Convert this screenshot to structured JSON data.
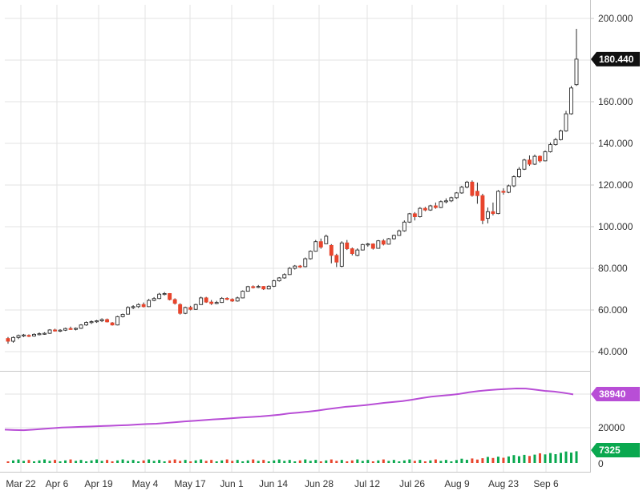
{
  "chart_data": {
    "type": "candlestick",
    "main": {
      "y_ticks": [
        "200.000",
        "180.000",
        "160.000",
        "140.000",
        "120.000",
        "100.000",
        "80.000",
        "60.000",
        "40.000"
      ],
      "ylim": [
        35,
        205
      ],
      "last_price": "180.440",
      "candles": [
        [
          46.3,
          47.0,
          43.8,
          45.0
        ],
        [
          45.0,
          47.3,
          44.3,
          46.8
        ],
        [
          46.8,
          48.2,
          46.0,
          47.7
        ],
        [
          47.7,
          48.5,
          47.0,
          48.0
        ],
        [
          47.8,
          48.3,
          47.0,
          47.5
        ],
        [
          47.5,
          48.8,
          47.2,
          48.3
        ],
        [
          48.3,
          49.2,
          47.8,
          48.6
        ],
        [
          48.6,
          49.3,
          48.1,
          48.8
        ],
        [
          48.8,
          50.8,
          48.5,
          50.4
        ],
        [
          50.4,
          51.0,
          49.6,
          49.9
        ],
        [
          49.9,
          50.8,
          49.4,
          50.3
        ],
        [
          50.3,
          51.5,
          49.9,
          51.1
        ],
        [
          51.1,
          52.0,
          50.5,
          50.7
        ],
        [
          50.7,
          51.6,
          50.2,
          51.2
        ],
        [
          51.2,
          53.2,
          50.9,
          52.8
        ],
        [
          52.8,
          54.5,
          52.4,
          54.0
        ],
        [
          54.0,
          55.0,
          53.3,
          54.4
        ],
        [
          54.4,
          55.2,
          53.8,
          54.8
        ],
        [
          54.8,
          56.0,
          54.2,
          55.4
        ],
        [
          55.4,
          55.9,
          54.0,
          54.3
        ],
        [
          53.8,
          54.2,
          52.5,
          52.8
        ],
        [
          52.8,
          57.2,
          52.6,
          56.8
        ],
        [
          56.8,
          58.3,
          56.4,
          57.9
        ],
        [
          58.0,
          61.8,
          57.8,
          61.2
        ],
        [
          61.2,
          62.3,
          60.4,
          61.6
        ],
        [
          61.6,
          63.2,
          61.0,
          62.6
        ],
        [
          62.6,
          63.6,
          61.2,
          61.6
        ],
        [
          61.6,
          65.3,
          61.4,
          64.6
        ],
        [
          64.6,
          66.2,
          64.2,
          65.5
        ],
        [
          65.5,
          68.2,
          65.2,
          67.6
        ],
        [
          67.6,
          68.6,
          67.0,
          67.9
        ],
        [
          67.9,
          68.1,
          64.6,
          65.0
        ],
        [
          65.0,
          65.6,
          62.6,
          63.2
        ],
        [
          62.6,
          63.2,
          57.8,
          58.4
        ],
        [
          58.4,
          61.6,
          58.0,
          61.2
        ],
        [
          61.2,
          62.0,
          59.8,
          60.3
        ],
        [
          60.3,
          63.0,
          60.0,
          62.6
        ],
        [
          62.6,
          66.4,
          62.4,
          65.8
        ],
        [
          65.8,
          66.3,
          63.4,
          63.8
        ],
        [
          63.8,
          64.8,
          62.4,
          63.1
        ],
        [
          63.1,
          64.4,
          62.8,
          63.6
        ],
        [
          63.6,
          66.2,
          63.4,
          65.6
        ],
        [
          65.6,
          66.1,
          64.7,
          65.1
        ],
        [
          65.1,
          65.6,
          63.9,
          64.3
        ],
        [
          64.3,
          66.4,
          64.0,
          65.8
        ],
        [
          65.8,
          69.4,
          65.6,
          69.0
        ],
        [
          69.0,
          71.6,
          68.8,
          71.2
        ],
        [
          71.2,
          71.8,
          70.3,
          70.9
        ],
        [
          70.9,
          72.0,
          70.5,
          71.3
        ],
        [
          71.3,
          71.5,
          69.6,
          70.1
        ],
        [
          70.1,
          71.8,
          69.9,
          71.4
        ],
        [
          71.4,
          74.5,
          71.0,
          74.0
        ],
        [
          74.0,
          75.8,
          73.6,
          75.4
        ],
        [
          75.4,
          77.6,
          75.0,
          77.0
        ],
        [
          77.0,
          80.6,
          76.8,
          80.0
        ],
        [
          80.0,
          81.6,
          79.4,
          81.1
        ],
        [
          81.1,
          81.6,
          80.2,
          80.8
        ],
        [
          80.8,
          85.2,
          80.5,
          84.6
        ],
        [
          84.6,
          88.6,
          84.2,
          88.2
        ],
        [
          88.2,
          93.6,
          88.0,
          92.8
        ],
        [
          92.8,
          94.3,
          89.4,
          90.2
        ],
        [
          91.8,
          96.2,
          91.6,
          95.4
        ],
        [
          91.0,
          91.6,
          82.4,
          86.2
        ],
        [
          86.2,
          87.0,
          80.6,
          83.0
        ],
        [
          81.0,
          93.0,
          80.5,
          92.2
        ],
        [
          92.2,
          93.6,
          88.8,
          89.4
        ],
        [
          89.4,
          90.0,
          86.2,
          87.1
        ],
        [
          86.2,
          89.6,
          85.8,
          88.8
        ],
        [
          88.8,
          91.8,
          88.6,
          91.4
        ],
        [
          91.4,
          92.2,
          90.4,
          91.7
        ],
        [
          91.7,
          92.0,
          89.0,
          89.6
        ],
        [
          89.6,
          93.6,
          89.4,
          93.2
        ],
        [
          93.2,
          94.0,
          91.0,
          91.6
        ],
        [
          91.6,
          94.6,
          91.4,
          94.2
        ],
        [
          94.2,
          96.2,
          93.8,
          95.8
        ],
        [
          95.8,
          98.6,
          95.6,
          98.0
        ],
        [
          98.0,
          103.0,
          97.6,
          102.2
        ],
        [
          102.2,
          106.6,
          101.8,
          106.2
        ],
        [
          106.2,
          107.0,
          103.0,
          104.8
        ],
        [
          104.8,
          109.4,
          104.4,
          108.8
        ],
        [
          108.8,
          109.5,
          107.4,
          108.0
        ],
        [
          108.0,
          110.5,
          107.6,
          110.0
        ],
        [
          110.0,
          111.6,
          108.6,
          109.2
        ],
        [
          109.2,
          112.6,
          108.9,
          112.0
        ],
        [
          112.0,
          113.6,
          111.2,
          112.4
        ],
        [
          112.4,
          114.4,
          111.8,
          113.9
        ],
        [
          113.9,
          116.6,
          113.4,
          116.2
        ],
        [
          116.2,
          119.6,
          115.8,
          119.0
        ],
        [
          119.0,
          122.0,
          118.4,
          121.4
        ],
        [
          121.4,
          122.2,
          114.4,
          115.0
        ],
        [
          117.0,
          121.2,
          111.0,
          114.9
        ],
        [
          114.9,
          115.8,
          101.2,
          103.0
        ],
        [
          104.0,
          109.2,
          101.6,
          107.2
        ],
        [
          107.2,
          111.6,
          105.4,
          106.3
        ],
        [
          106.3,
          117.6,
          106.0,
          117.0
        ],
        [
          117.0,
          118.4,
          115.4,
          116.5
        ],
        [
          116.5,
          120.2,
          116.1,
          119.6
        ],
        [
          119.6,
          124.6,
          119.0,
          124.0
        ],
        [
          124.0,
          128.6,
          123.5,
          127.6
        ],
        [
          127.6,
          132.6,
          127.2,
          132.0
        ],
        [
          132.0,
          134.2,
          129.2,
          130.0
        ],
        [
          130.0,
          134.6,
          129.6,
          133.8
        ],
        [
          133.8,
          134.2,
          130.8,
          131.6
        ],
        [
          131.6,
          136.6,
          131.4,
          136.0
        ],
        [
          136.0,
          140.4,
          135.6,
          139.4
        ],
        [
          139.4,
          142.6,
          138.9,
          141.8
        ],
        [
          141.8,
          146.6,
          141.4,
          146.0
        ],
        [
          146.0,
          155.6,
          145.6,
          154.2
        ],
        [
          154.2,
          167.6,
          153.8,
          166.6
        ],
        [
          168.2,
          195.0,
          167.6,
          180.44
        ]
      ]
    },
    "indicator": {
      "y_ticks": [
        "20000"
      ],
      "last_value": "38940",
      "values": [
        18900,
        18700,
        18600,
        18900,
        19300,
        19700,
        20100,
        20300,
        20500,
        20700,
        20900,
        21100,
        21300,
        21500,
        21800,
        22100,
        22300,
        22700,
        23100,
        23600,
        23900,
        24300,
        24700,
        25000,
        25400,
        25800,
        26100,
        26400,
        26900,
        27400,
        28100,
        28600,
        29100,
        29700,
        30500,
        31200,
        31900,
        32300,
        32800,
        33400,
        34100,
        34600,
        35100,
        35900,
        36800,
        37600,
        38100,
        38600,
        39200,
        40100,
        40800,
        41300,
        41700,
        42000,
        42300,
        42200,
        41600,
        40900,
        40500,
        39800,
        38940
      ],
      "color": "#b84ed6"
    },
    "volume": {
      "y_ticks": [
        "0"
      ],
      "last_value": "7325",
      "color": "#0aa84f"
    },
    "x_ticks": [
      "Mar 22",
      "Apr 6",
      "Apr 19",
      "May 4",
      "May 17",
      "Jun 1",
      "Jun 14",
      "Jun 28",
      "Jul 12",
      "Jul 26",
      "Aug 9",
      "Aug 23",
      "Sep 6"
    ],
    "colors": {
      "up": "#ffffff",
      "down": "#e8452d",
      "outline": "#2b2b2b",
      "price_tag": "#111111"
    }
  }
}
